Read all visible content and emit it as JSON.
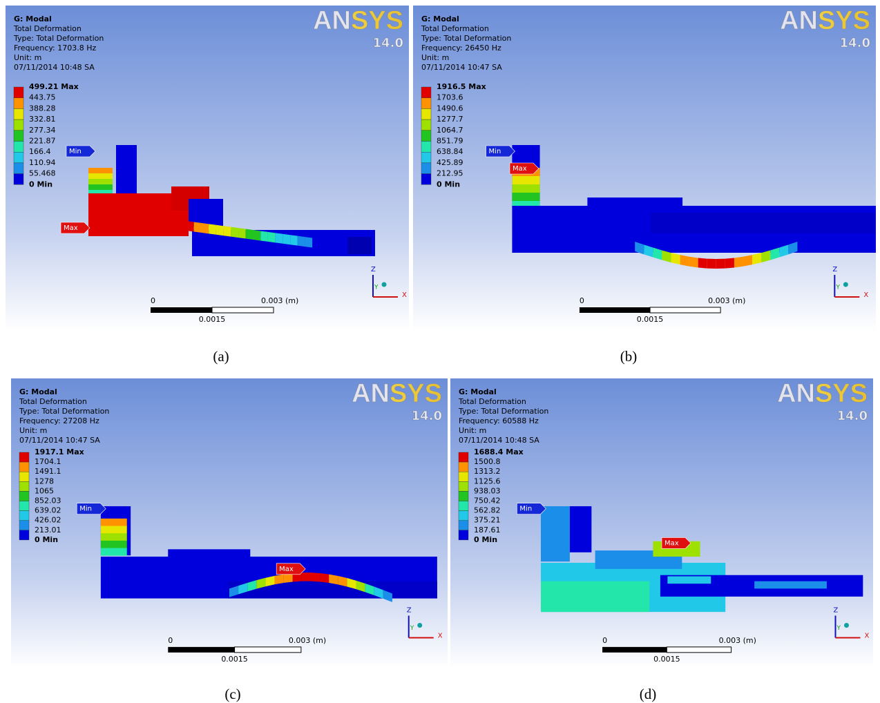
{
  "panels": [
    {
      "header": [
        "G: Modal",
        "Total Deformation",
        "Type: Total Deformation",
        "Frequency: 1703.8 Hz",
        "Unit: m",
        "07/11/2014 10:48 SA"
      ],
      "logo": "ANSYS",
      "version": "14.0",
      "legend": [
        "499.21 Max",
        "443.75",
        "388.28",
        "332.81",
        "277.34",
        "221.87",
        "166.4",
        "110.94",
        "55.468",
        "0 Min"
      ],
      "min_tag": "Min",
      "max_tag": "Max",
      "scale": {
        "start": "0",
        "end": "0.003 (m)",
        "mid": "0.0015"
      },
      "axes": {
        "z": "Z",
        "y": "Y",
        "x": "X"
      },
      "caption": "(a)"
    },
    {
      "header": [
        "G: Modal",
        "Total Deformation",
        "Type: Total Deformation",
        "Frequency: 26450 Hz",
        "Unit: m",
        "07/11/2014 10:47 SA"
      ],
      "logo": "ANSYS",
      "version": "14.0",
      "legend": [
        "1916.5 Max",
        "1703.6",
        "1490.6",
        "1277.7",
        "1064.7",
        "851.79",
        "638.84",
        "425.89",
        "212.95",
        "0 Min"
      ],
      "min_tag": "Min",
      "max_tag": "Max",
      "scale": {
        "start": "0",
        "end": "0.003 (m)",
        "mid": "0.0015"
      },
      "axes": {
        "z": "Z",
        "y": "Y",
        "x": "X"
      },
      "caption": "(b)"
    },
    {
      "header": [
        "G: Modal",
        "Total Deformation",
        "Type: Total Deformation",
        "Frequency: 27208 Hz",
        "Unit: m",
        "07/11/2014 10:47 SA"
      ],
      "logo": "ANSYS",
      "version": "14.0",
      "legend": [
        "1917.1 Max",
        "1704.1",
        "1491.1",
        "1278",
        "1065",
        "852.03",
        "639.02",
        "426.02",
        "213.01",
        "0 Min"
      ],
      "min_tag": "Min",
      "max_tag": "Max",
      "scale": {
        "start": "0",
        "end": "0.003 (m)",
        "mid": "0.0015"
      },
      "axes": {
        "z": "Z",
        "y": "Y",
        "x": "X"
      },
      "caption": "(c)"
    },
    {
      "header": [
        "G: Modal",
        "Total Deformation",
        "Type: Total Deformation",
        "Frequency: 60588 Hz",
        "Unit: m",
        "07/11/2014 10:48 SA"
      ],
      "logo": "ANSYS",
      "version": "14.0",
      "legend": [
        "1688.4 Max",
        "1500.8",
        "1313.2",
        "1125.6",
        "938.03",
        "750.42",
        "562.82",
        "375.21",
        "187.61",
        "0 Min"
      ],
      "min_tag": "Min",
      "max_tag": "Max",
      "scale": {
        "start": "0",
        "end": "0.003 (m)",
        "mid": "0.0015"
      },
      "axes": {
        "z": "Z",
        "y": "Y",
        "x": "X"
      },
      "caption": "(d)"
    }
  ]
}
